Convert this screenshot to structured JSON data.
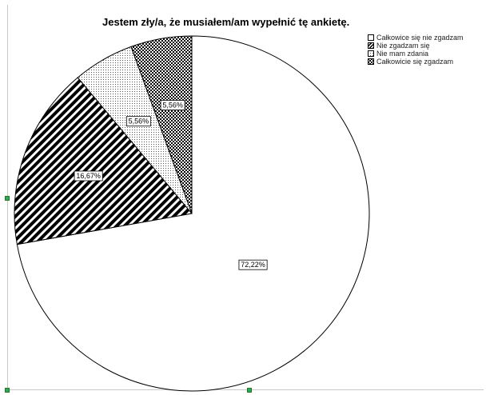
{
  "chart_data": {
    "type": "pie",
    "title": "Jestem zły/a, że musiałem/am wypełnić tę ankietę.",
    "categories": [
      "Całkowice się nie zgadzam",
      "Nie zgadzam się",
      "Nie mam zdania",
      "Całkowicie się zgadzam"
    ],
    "values": [
      72.22,
      16.67,
      5.56,
      5.56
    ],
    "data_labels": [
      "72,22%",
      "16,67%",
      "5,56%",
      "5,56%"
    ],
    "patterns": [
      "none",
      "diagonal-stripes",
      "dots",
      "checker"
    ],
    "legend_position": "top-right",
    "start_angle": "12 o'clock",
    "direction": "clockwise"
  }
}
